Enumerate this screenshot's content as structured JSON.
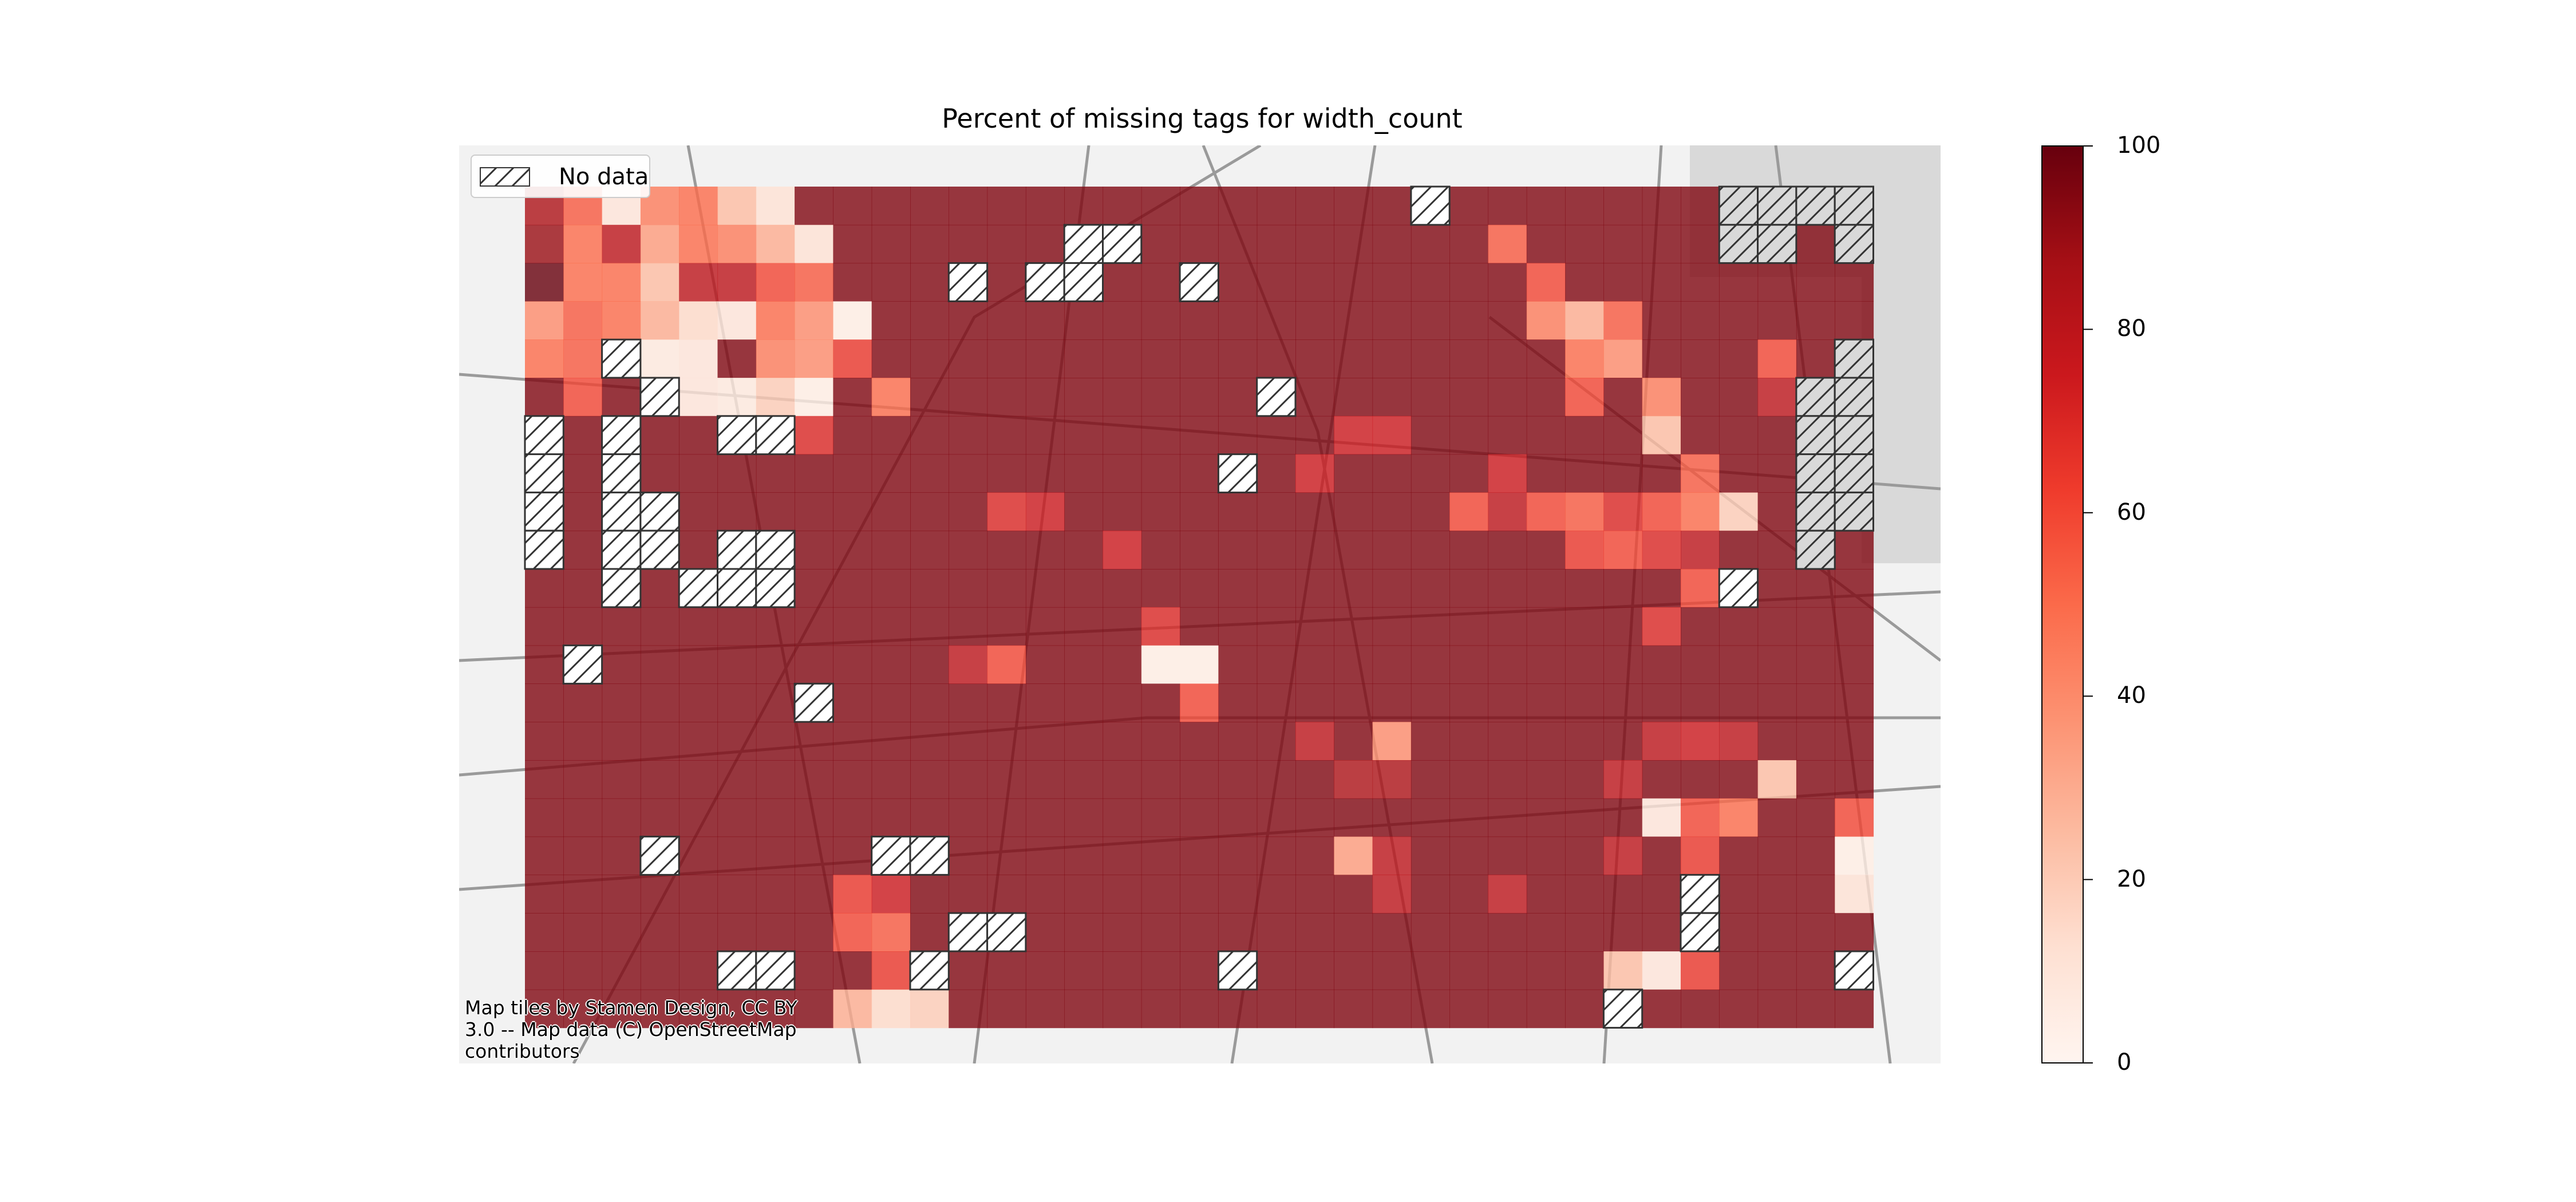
{
  "figure": {
    "title": "Percent of missing tags for width_count",
    "legend_label": "No data",
    "attribution": "Map tiles by Stamen Design, CC BY 3.0 -- Map data (C) OpenStreetMap contributors",
    "colormap": "Reds",
    "basemap": "light grey street map",
    "colors": {
      "no_data_fill": "#ffffff",
      "hatch": "#333333",
      "background": "#ffffff",
      "grid_cell_alpha": 0.8
    }
  },
  "chart_data": {
    "type": "heatmap",
    "title": "Percent of missing tags for width_count",
    "value_range": [
      0,
      100
    ],
    "colorbar": {
      "ticks": [
        0,
        20,
        40,
        60,
        80,
        100
      ],
      "labels": [
        "0",
        "20",
        "40",
        "60",
        "80",
        "100"
      ]
    },
    "grid_columns": 35,
    "grid_rows": 22,
    "default_value": 95,
    "cell_values": [
      {
        "col": 0,
        "row": 0,
        "value": 85
      },
      {
        "col": 1,
        "row": 0,
        "value": 55
      },
      {
        "col": 2,
        "row": 0,
        "value": 10
      },
      {
        "col": 3,
        "row": 0,
        "value": 45
      },
      {
        "col": 4,
        "row": 0,
        "value": 50
      },
      {
        "col": 5,
        "row": 0,
        "value": 25
      },
      {
        "col": 6,
        "row": 0,
        "value": 12
      },
      {
        "col": 0,
        "row": 1,
        "value": 90
      },
      {
        "col": 1,
        "row": 1,
        "value": 50
      },
      {
        "col": 2,
        "row": 1,
        "value": 80
      },
      {
        "col": 3,
        "row": 1,
        "value": 35
      },
      {
        "col": 4,
        "row": 1,
        "value": 50
      },
      {
        "col": 5,
        "row": 1,
        "value": 45
      },
      {
        "col": 6,
        "row": 1,
        "value": 30
      },
      {
        "col": 7,
        "row": 1,
        "value": 12
      },
      {
        "col": 0,
        "row": 2,
        "value": 100
      },
      {
        "col": 1,
        "row": 2,
        "value": 50
      },
      {
        "col": 2,
        "row": 2,
        "value": 50
      },
      {
        "col": 3,
        "row": 2,
        "value": 25
      },
      {
        "col": 4,
        "row": 2,
        "value": 80
      },
      {
        "col": 5,
        "row": 2,
        "value": 80
      },
      {
        "col": 6,
        "row": 2,
        "value": 60
      },
      {
        "col": 7,
        "row": 2,
        "value": 55
      },
      {
        "col": 0,
        "row": 3,
        "value": 40
      },
      {
        "col": 1,
        "row": 3,
        "value": 55
      },
      {
        "col": 2,
        "row": 3,
        "value": 50
      },
      {
        "col": 3,
        "row": 3,
        "value": 30
      },
      {
        "col": 4,
        "row": 3,
        "value": 15
      },
      {
        "col": 5,
        "row": 3,
        "value": 10
      },
      {
        "col": 6,
        "row": 3,
        "value": 50
      },
      {
        "col": 7,
        "row": 3,
        "value": 40
      },
      {
        "col": 8,
        "row": 3,
        "value": 5
      },
      {
        "col": 0,
        "row": 4,
        "value": 50
      },
      {
        "col": 1,
        "row": 4,
        "value": 55
      },
      {
        "col": 3,
        "row": 4,
        "value": 8
      },
      {
        "col": 4,
        "row": 4,
        "value": 10
      },
      {
        "col": 5,
        "row": 4,
        "value": 95
      },
      {
        "col": 6,
        "row": 4,
        "value": 45
      },
      {
        "col": 7,
        "row": 4,
        "value": 40
      },
      {
        "col": 8,
        "row": 4,
        "value": 65
      },
      {
        "col": 1,
        "row": 5,
        "value": 60
      },
      {
        "col": 4,
        "row": 5,
        "value": 10
      },
      {
        "col": 5,
        "row": 5,
        "value": 8
      },
      {
        "col": 6,
        "row": 5,
        "value": 20
      },
      {
        "col": 7,
        "row": 5,
        "value": 5
      },
      {
        "col": 9,
        "row": 5,
        "value": 50
      },
      {
        "col": 7,
        "row": 6,
        "value": 70
      },
      {
        "col": 25,
        "row": 1,
        "value": 55
      },
      {
        "col": 26,
        "row": 2,
        "value": 60
      },
      {
        "col": 26,
        "row": 3,
        "value": 45
      },
      {
        "col": 27,
        "row": 3,
        "value": 30
      },
      {
        "col": 28,
        "row": 3,
        "value": 55
      },
      {
        "col": 27,
        "row": 4,
        "value": 50
      },
      {
        "col": 28,
        "row": 4,
        "value": 40
      },
      {
        "col": 32,
        "row": 4,
        "value": 60
      },
      {
        "col": 27,
        "row": 5,
        "value": 60
      },
      {
        "col": 29,
        "row": 5,
        "value": 45
      },
      {
        "col": 32,
        "row": 5,
        "value": 80
      },
      {
        "col": 29,
        "row": 6,
        "value": 25
      },
      {
        "col": 30,
        "row": 7,
        "value": 55
      },
      {
        "col": 25,
        "row": 7,
        "value": 75
      },
      {
        "col": 24,
        "row": 8,
        "value": 60
      },
      {
        "col": 25,
        "row": 8,
        "value": 80
      },
      {
        "col": 26,
        "row": 8,
        "value": 60
      },
      {
        "col": 27,
        "row": 8,
        "value": 55
      },
      {
        "col": 28,
        "row": 8,
        "value": 70
      },
      {
        "col": 29,
        "row": 8,
        "value": 60
      },
      {
        "col": 30,
        "row": 8,
        "value": 50
      },
      {
        "col": 31,
        "row": 8,
        "value": 20
      },
      {
        "col": 27,
        "row": 9,
        "value": 65
      },
      {
        "col": 28,
        "row": 9,
        "value": 60
      },
      {
        "col": 29,
        "row": 9,
        "value": 70
      },
      {
        "col": 30,
        "row": 9,
        "value": 80
      },
      {
        "col": 30,
        "row": 10,
        "value": 60
      },
      {
        "col": 29,
        "row": 11,
        "value": 70
      },
      {
        "col": 22,
        "row": 6,
        "value": 75
      },
      {
        "col": 21,
        "row": 6,
        "value": 75
      },
      {
        "col": 20,
        "row": 7,
        "value": 75
      },
      {
        "col": 12,
        "row": 8,
        "value": 70
      },
      {
        "col": 13,
        "row": 8,
        "value": 75
      },
      {
        "col": 15,
        "row": 9,
        "value": 75
      },
      {
        "col": 16,
        "row": 11,
        "value": 70
      },
      {
        "col": 16,
        "row": 12,
        "value": 5
      },
      {
        "col": 17,
        "row": 12,
        "value": 5
      },
      {
        "col": 17,
        "row": 13,
        "value": 60
      },
      {
        "col": 11,
        "row": 12,
        "value": 80
      },
      {
        "col": 12,
        "row": 12,
        "value": 60
      },
      {
        "col": 20,
        "row": 14,
        "value": 80
      },
      {
        "col": 22,
        "row": 14,
        "value": 40
      },
      {
        "col": 21,
        "row": 15,
        "value": 85
      },
      {
        "col": 22,
        "row": 15,
        "value": 85
      },
      {
        "col": 21,
        "row": 17,
        "value": 35
      },
      {
        "col": 22,
        "row": 17,
        "value": 80
      },
      {
        "col": 22,
        "row": 18,
        "value": 80
      },
      {
        "col": 25,
        "row": 18,
        "value": 80
      },
      {
        "col": 28,
        "row": 15,
        "value": 80
      },
      {
        "col": 29,
        "row": 14,
        "value": 80
      },
      {
        "col": 30,
        "row": 14,
        "value": 75
      },
      {
        "col": 31,
        "row": 14,
        "value": 80
      },
      {
        "col": 32,
        "row": 15,
        "value": 25
      },
      {
        "col": 29,
        "row": 16,
        "value": 10
      },
      {
        "col": 30,
        "row": 16,
        "value": 60
      },
      {
        "col": 31,
        "row": 16,
        "value": 50
      },
      {
        "col": 34,
        "row": 16,
        "value": 60
      },
      {
        "col": 34,
        "row": 17,
        "value": 5
      },
      {
        "col": 34,
        "row": 18,
        "value": 12
      },
      {
        "col": 28,
        "row": 17,
        "value": 80
      },
      {
        "col": 30,
        "row": 17,
        "value": 65
      },
      {
        "col": 28,
        "row": 20,
        "value": 25
      },
      {
        "col": 29,
        "row": 20,
        "value": 10
      },
      {
        "col": 30,
        "row": 20,
        "value": 65
      },
      {
        "col": 8,
        "row": 18,
        "value": 65
      },
      {
        "col": 9,
        "row": 18,
        "value": 75
      },
      {
        "col": 8,
        "row": 19,
        "value": 60
      },
      {
        "col": 9,
        "row": 19,
        "value": 55
      },
      {
        "col": 9,
        "row": 20,
        "value": 65
      },
      {
        "col": 8,
        "row": 21,
        "value": 30
      },
      {
        "col": 9,
        "row": 21,
        "value": 15
      },
      {
        "col": 10,
        "row": 21,
        "value": 20
      }
    ],
    "no_data_cells": [
      [
        23,
        0
      ],
      [
        14,
        1
      ],
      [
        15,
        1
      ],
      [
        13,
        2
      ],
      [
        14,
        2
      ],
      [
        17,
        2
      ],
      [
        11,
        2
      ],
      [
        2,
        4
      ],
      [
        3,
        5
      ],
      [
        19,
        5
      ],
      [
        0,
        6
      ],
      [
        2,
        6
      ],
      [
        5,
        6
      ],
      [
        6,
        6
      ],
      [
        0,
        7
      ],
      [
        2,
        7
      ],
      [
        18,
        7
      ],
      [
        0,
        8
      ],
      [
        2,
        8
      ],
      [
        3,
        8
      ],
      [
        0,
        9
      ],
      [
        2,
        9
      ],
      [
        3,
        9
      ],
      [
        5,
        9
      ],
      [
        6,
        9
      ],
      [
        2,
        10
      ],
      [
        4,
        10
      ],
      [
        5,
        10
      ],
      [
        6,
        10
      ],
      [
        1,
        12
      ],
      [
        7,
        13
      ],
      [
        3,
        17
      ],
      [
        9,
        17
      ],
      [
        10,
        17
      ],
      [
        11,
        19
      ],
      [
        12,
        19
      ],
      [
        5,
        20
      ],
      [
        6,
        20
      ],
      [
        10,
        20
      ],
      [
        18,
        20
      ],
      [
        31,
        10
      ],
      [
        30,
        18
      ],
      [
        30,
        19
      ],
      [
        28,
        21
      ],
      [
        34,
        20
      ]
    ],
    "no_data_grey_cells": [
      [
        31,
        0
      ],
      [
        32,
        0
      ],
      [
        33,
        0
      ],
      [
        34,
        0
      ],
      [
        31,
        1
      ],
      [
        32,
        1
      ],
      [
        34,
        1
      ],
      [
        34,
        4
      ],
      [
        33,
        5
      ],
      [
        34,
        5
      ],
      [
        33,
        6
      ],
      [
        34,
        6
      ],
      [
        33,
        7
      ],
      [
        34,
        7
      ],
      [
        33,
        8
      ],
      [
        34,
        8
      ],
      [
        33,
        9
      ]
    ]
  }
}
